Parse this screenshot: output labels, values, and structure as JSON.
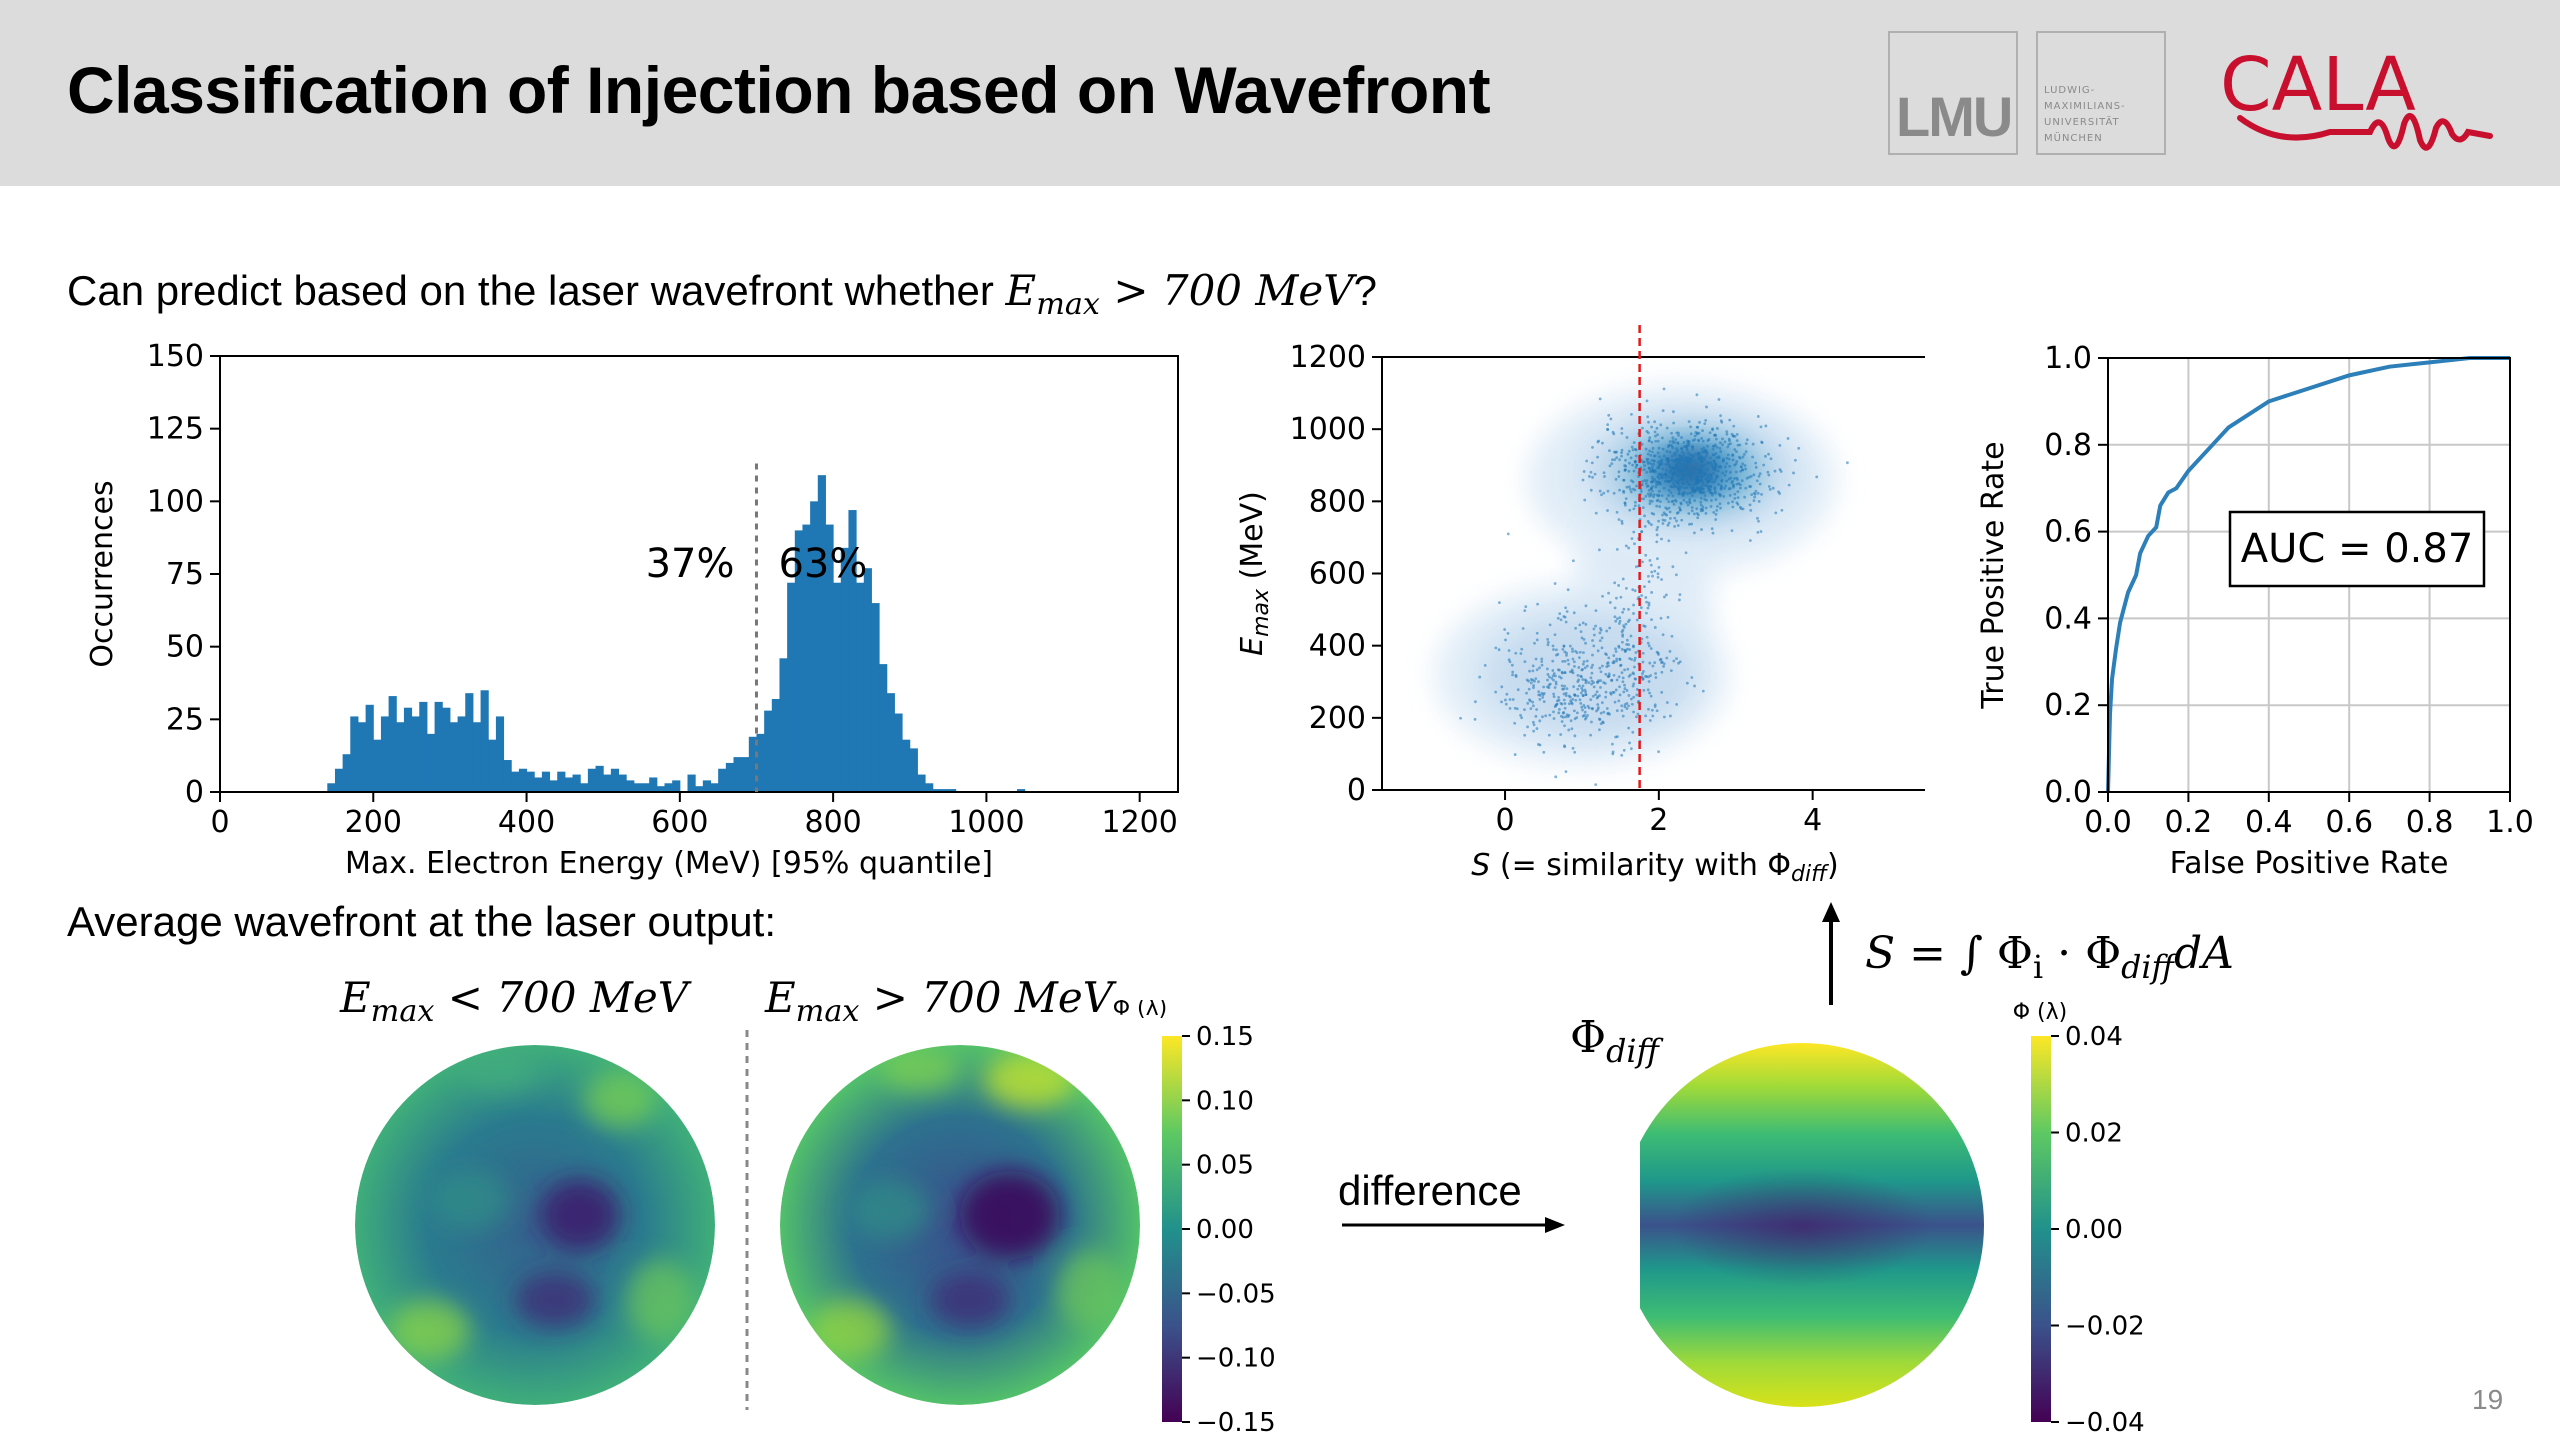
{
  "header": {
    "title": "Classification of Injection based on Wavefront",
    "logo_lmu": "LMU",
    "logo_uni_lines": [
      "LUDWIG-",
      "MAXIMILIANS-",
      "UNIVERSITÄT",
      "MÜNCHEN"
    ],
    "logo_cala": "CALA"
  },
  "text": {
    "question_prefix": "Can predict based on the laser wavefront whether ",
    "question_E": "E",
    "question_sub": "max",
    "question_rest": " >  700 MeV",
    "question_mark": "?",
    "avg_wavefront": "Average wavefront at the laser output:",
    "difference": "difference",
    "page_number": "19",
    "emax_lt_E": "E",
    "emax_lt_sub": "max",
    "emax_lt_rest": " <  700 MeV",
    "emax_gt_E": "E",
    "emax_gt_sub": "max",
    "emax_gt_rest": " >  700 MeV",
    "phi_diff_main": "Φ",
    "phi_diff_sub": "diff",
    "formula_S": "S",
    "formula_eq": " = ∫ Φ",
    "formula_i": "i",
    "formula_dot": " · Φ",
    "formula_diff": "diff",
    "formula_dA": "dA"
  },
  "chart_data": [
    {
      "type": "bar",
      "xlabel": "Max. Electron Energy (MeV) [95% quantile]",
      "ylabel": "Occurrences",
      "xlim": [
        0,
        1250
      ],
      "ylim": [
        0,
        150
      ],
      "xticks": [
        "0",
        "200",
        "400",
        "600",
        "800",
        "1000",
        "1200"
      ],
      "yticks": [
        "0",
        "25",
        "50",
        "75",
        "100",
        "125",
        "150"
      ],
      "bin_start": 140,
      "bin_width": 10,
      "values": [
        3,
        8,
        13,
        26,
        24,
        30,
        18,
        26,
        33,
        24,
        29,
        26,
        31,
        20,
        31,
        29,
        24,
        26,
        34,
        24,
        35,
        18,
        26,
        11,
        7,
        8,
        7,
        5,
        7,
        4,
        7,
        5,
        6,
        3,
        8,
        9,
        6,
        8,
        6,
        4,
        3,
        3,
        5,
        2,
        3,
        4,
        0,
        6,
        2,
        4,
        3,
        8,
        10,
        12,
        12,
        19,
        20,
        28,
        32,
        46,
        72,
        90,
        92,
        100,
        109,
        92,
        72,
        84,
        97,
        72,
        77,
        65,
        44,
        34,
        27,
        18,
        15,
        6,
        3,
        1,
        1,
        1,
        0,
        0,
        0,
        0,
        0,
        0,
        0,
        0,
        1
      ],
      "threshold": 700,
      "annotations": [
        "37%",
        "63%"
      ],
      "color": "#1f77b4"
    },
    {
      "type": "scatter",
      "xlabel_S": "S",
      "xlabel_mid": " (= similarity with Φ",
      "xlabel_sub": "diff",
      "xlabel_end": ")",
      "ylabel_E": "E",
      "ylabel_sub": "max",
      "ylabel_end": " (MeV)",
      "xlim": [
        -1.6,
        5.5
      ],
      "ylim": [
        0,
        1200
      ],
      "xticks": [
        "0",
        "2",
        "4"
      ],
      "yticks": [
        "0",
        "200",
        "400",
        "600",
        "800",
        "1000",
        "1200"
      ],
      "threshold_x": 1.75,
      "clusters": [
        {
          "cx": 2.35,
          "cy": 880,
          "sx": 0.9,
          "sy": 70,
          "n": 900
        },
        {
          "cx": 1.0,
          "cy": 300,
          "sx": 0.9,
          "sy": 90,
          "n": 500
        },
        {
          "cx": 1.8,
          "cy": 500,
          "sx": 0.5,
          "sy": 130,
          "n": 120
        }
      ],
      "color": "#1f77b4"
    },
    {
      "type": "line",
      "xlabel": "False Positive Rate",
      "ylabel": "True Positive Rate",
      "xlim": [
        0,
        1
      ],
      "ylim": [
        0,
        1
      ],
      "xticks": [
        "0.0",
        "0.2",
        "0.4",
        "0.6",
        "0.8",
        "1.0"
      ],
      "yticks": [
        "0.0",
        "0.2",
        "0.4",
        "0.6",
        "0.8",
        "1.0"
      ],
      "x": [
        0,
        0.005,
        0.01,
        0.02,
        0.03,
        0.05,
        0.07,
        0.08,
        0.1,
        0.12,
        0.13,
        0.15,
        0.17,
        0.2,
        0.23,
        0.26,
        0.3,
        0.35,
        0.4,
        0.5,
        0.6,
        0.7,
        0.8,
        0.9,
        1.0
      ],
      "y": [
        0,
        0.18,
        0.26,
        0.33,
        0.39,
        0.46,
        0.5,
        0.55,
        0.59,
        0.61,
        0.66,
        0.69,
        0.7,
        0.74,
        0.77,
        0.8,
        0.84,
        0.87,
        0.9,
        0.93,
        0.96,
        0.98,
        0.99,
        1.0,
        1.0
      ],
      "auc_label": "AUC = 0.87",
      "color": "#2c7fb8"
    }
  ],
  "colorbar_left": {
    "label": "Φ (λ)",
    "ticks": [
      "0.15",
      "0.10",
      "0.05",
      "0.00",
      "−0.05",
      "−0.10",
      "−0.15"
    ]
  },
  "colorbar_right": {
    "label": "Φ (λ)",
    "ticks": [
      "0.04",
      "0.02",
      "0.00",
      "−0.02",
      "−0.04"
    ]
  }
}
